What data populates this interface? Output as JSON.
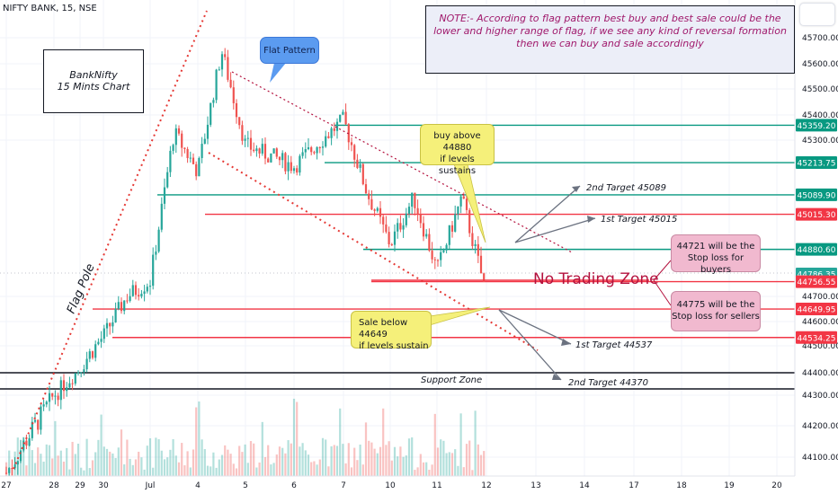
{
  "header": {
    "symbol": "NIFTY BANK, 15, NSE"
  },
  "note": {
    "text": "NOTE:- According to flag pattern best buy and best sale could be the lower and higher range of flag, if we see any kind of reversal formation then we can buy and sale accordingly"
  },
  "title_box": {
    "line1": "BankNifty",
    "line2": "15 Mints Chart"
  },
  "callouts": {
    "flat_pattern": "Flat Pattern",
    "buy_line1": "buy above 44880",
    "buy_line2": "if levels sustains",
    "sale_line1": "Sale below 44649",
    "sale_line2": "if levels sustain",
    "sl_buy_line1": "44721 will be the",
    "sl_buy_line2": "Stop loss for buyers",
    "sl_sell_line1": "44775 will be the",
    "sl_sell_line2": "Stop loss for sellers",
    "no_trading_zone": "No Trading Zone",
    "flag_pole": "Flag Pole",
    "support_zone": "Support Zone"
  },
  "colors": {
    "up": "#26a69a",
    "down": "#ef5350",
    "accent_red": "#b4123e",
    "line_green": "#089981",
    "line_red": "#f23645",
    "badge_gray": "#9598a1"
  },
  "chart_data": {
    "type": "candlestick",
    "symbol": "NIFTY BANK",
    "timeframe": "15",
    "exchange": "NSE",
    "x_tick_labels": [
      "27",
      "28",
      "29",
      "30",
      "Jul",
      "4",
      "5",
      "6",
      "7",
      "10",
      "11",
      "12",
      "13",
      "14",
      "17",
      "18",
      "19",
      "20"
    ],
    "y_tick_labels": [
      "44100.00",
      "44200.00",
      "44300.00",
      "44400.00",
      "44500.00",
      "44600.00",
      "44700.00",
      "45300.00",
      "45400.00",
      "45500.00",
      "45600.00",
      "45700.00"
    ],
    "ylim": [
      44030,
      45760
    ],
    "horizontal_levels": [
      {
        "value": 45359.2,
        "label": "45359.20",
        "color": "#089981"
      },
      {
        "value": 45213.75,
        "label": "45213.75",
        "color": "#089981"
      },
      {
        "value": 45089.9,
        "label": "45089.90",
        "color": "#089981"
      },
      {
        "value": 45015.3,
        "label": "45015.30",
        "color": "#f23645"
      },
      {
        "value": 44880.6,
        "label": "44880.60",
        "color": "#089981"
      },
      {
        "value": 44786.35,
        "label": "44786.35",
        "color": "#26a69a"
      },
      {
        "value": 44756.55,
        "label": "44756.55",
        "color": "#f23645"
      },
      {
        "value": 44649.95,
        "label": "44649.95",
        "color": "#f23645"
      },
      {
        "value": 44534.25,
        "label": "44534.25",
        "color": "#f23645"
      },
      {
        "value": 44400,
        "label": "",
        "color": "#131722"
      },
      {
        "value": 44335,
        "label": "",
        "color": "#131722"
      }
    ],
    "targets": [
      "2nd Target 45089",
      "1st Target 45015",
      "1st Target 44537",
      "2nd Target 44370"
    ],
    "price_path": [
      [
        "27",
        44050
      ],
      [
        "28",
        44300
      ],
      [
        "29",
        44420
      ],
      [
        "30",
        44540
      ],
      [
        "30",
        44700
      ],
      [
        "Jul",
        44760
      ],
      [
        "Jul",
        45330
      ],
      [
        "4",
        45180
      ],
      [
        "4",
        45650
      ],
      [
        "5",
        45280
      ],
      [
        "6",
        45200
      ],
      [
        "7",
        45380
      ],
      [
        "7",
        45100
      ],
      [
        "10",
        44900
      ],
      [
        "10",
        45080
      ],
      [
        "11",
        44800
      ],
      [
        "11",
        45080
      ],
      [
        "12",
        44720
      ]
    ]
  }
}
